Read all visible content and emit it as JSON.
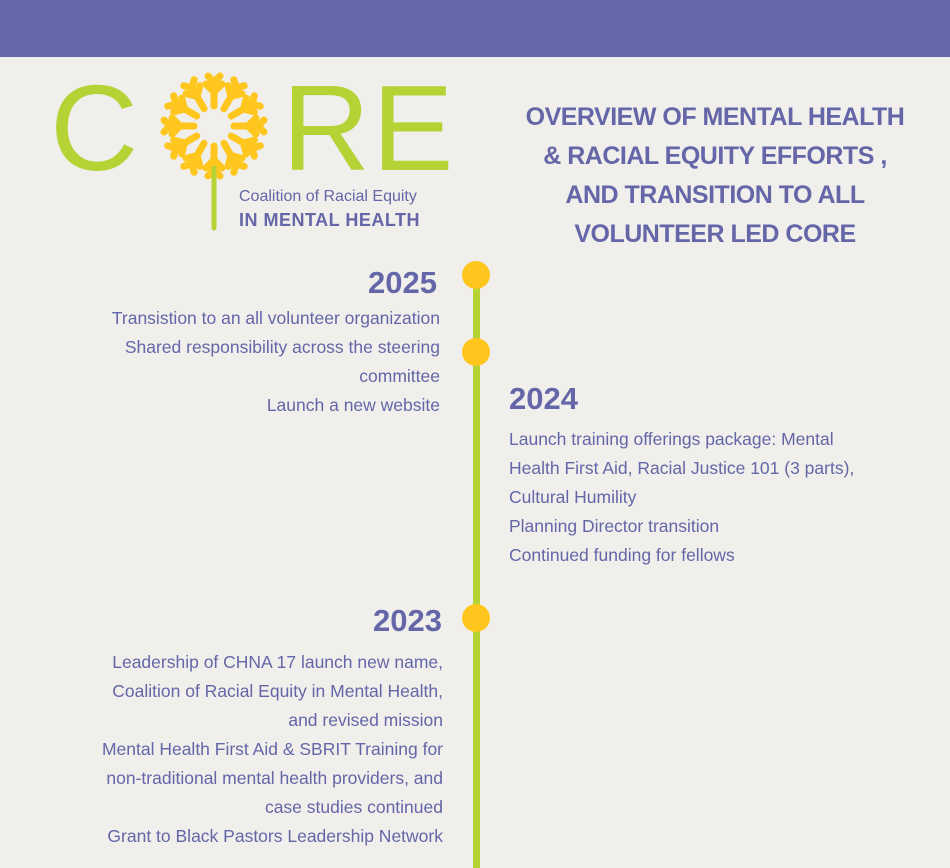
{
  "header": {
    "color": "#6667aa"
  },
  "logo": {
    "letters": [
      "C",
      "R",
      "E"
    ],
    "subtitle": "Coalition of Racial Equity",
    "tagline": "IN MENTAL HEALTH"
  },
  "title": {
    "lines": [
      "OVERVIEW OF MENTAL HEALTH",
      "& RACIAL EQUITY EFFORTS ,",
      "AND TRANSITION TO ALL",
      "VOLUNTEER LED CORE"
    ]
  },
  "colors": {
    "green": "#b5d334",
    "yellow": "#ffc61e",
    "purple": "#6466a8",
    "background": "#f0efeb"
  },
  "timeline": [
    {
      "year": "2025",
      "items": [
        "Transistion to an all volunteer organization",
        "Shared responsibility across the steering",
        "committee",
        "Launch a new website "
      ]
    },
    {
      "year": "2024",
      "items": [
        "Launch training offerings package:  Mental",
        "Health First Aid, Racial Justice 101 (3 parts),",
        "Cultural Humility",
        "Planning Director transition",
        "Continued funding for fellows"
      ]
    },
    {
      "year": "2023",
      "items": [
        "Leadership of CHNA 17  launch new name,",
        "Coalition of Racial Equity in Mental  Health,",
        "and revised mission",
        "Mental Health First Aid & SBRIT Training for",
        "non-traditional mental health providers, and",
        "case studies continued",
        "Grant to Black Pastors Leadership Network "
      ]
    }
  ]
}
